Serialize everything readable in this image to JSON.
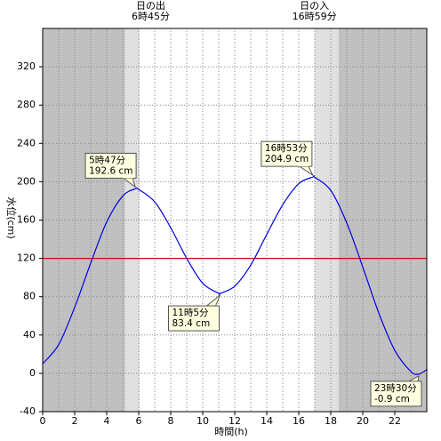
{
  "chart_data": {
    "type": "line",
    "xlabel": "時間(h)",
    "ylabel": "水位(cm)",
    "xlim": [
      0,
      24
    ],
    "ylim": [
      -40,
      360
    ],
    "xticks": [
      0,
      2,
      4,
      6,
      8,
      10,
      12,
      14,
      16,
      18,
      20,
      22
    ],
    "yticks": [
      -40,
      0,
      40,
      80,
      120,
      160,
      200,
      240,
      280,
      320
    ],
    "xgrid_step": 1,
    "grid": true,
    "reference_line": {
      "value": 120,
      "color": "#e00000"
    },
    "night": [
      [
        0,
        5.15
      ],
      [
        18.5,
        24
      ]
    ],
    "twilight": [
      [
        5.15,
        6.05
      ],
      [
        16.98,
        18.5
      ]
    ],
    "sun": [
      {
        "title": "日の出",
        "time": "6時45分",
        "x": 6.75
      },
      {
        "title": "日の入",
        "time": "16時59分",
        "x": 16.98
      }
    ],
    "series": [
      {
        "color": "#0000e0",
        "x": [
          0,
          1,
          2,
          3,
          4,
          5,
          5.783,
          6,
          7,
          8,
          9,
          10,
          11,
          11.083,
          12,
          13,
          14,
          15,
          16,
          16.883,
          17,
          18,
          19,
          20,
          21,
          22,
          23,
          23.5,
          24
        ],
        "values": [
          10,
          30,
          69,
          115,
          158,
          185,
          192.6,
          192,
          179,
          152,
          120,
          94,
          83.5,
          83.4,
          91,
          113,
          145,
          176,
          198,
          204.9,
          204.7,
          191,
          157,
          111,
          63,
          24,
          2,
          -0.9,
          4
        ]
      }
    ],
    "annotations": [
      {
        "time": "5時47分",
        "value_label": "192.6 cm",
        "x": 5.783,
        "value": 192.6
      },
      {
        "time": "11時5分",
        "value_label": "83.4 cm",
        "x": 11.083,
        "value": 83.4
      },
      {
        "time": "16時53分",
        "value_label": "204.9 cm",
        "x": 16.883,
        "value": 204.9
      },
      {
        "time": "23時30分",
        "value_label": "-0.9 cm",
        "x": 23.5,
        "value": -0.9
      }
    ]
  }
}
